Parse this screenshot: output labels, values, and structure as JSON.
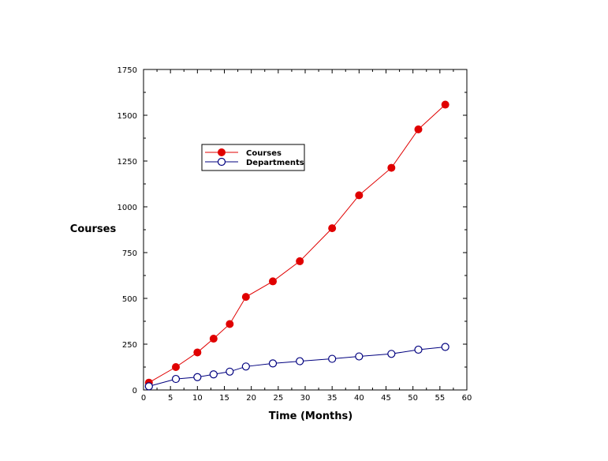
{
  "chart_data": {
    "type": "line",
    "title": "",
    "xlabel": "Time (Months)",
    "ylabel": "Courses",
    "xlim": [
      0,
      60
    ],
    "ylim": [
      0,
      1750
    ],
    "xticks": [
      0,
      5,
      10,
      15,
      20,
      25,
      30,
      35,
      40,
      45,
      50,
      55,
      60
    ],
    "yticks": [
      0,
      250,
      500,
      750,
      1000,
      1250,
      1500,
      1750
    ],
    "grid": false,
    "legend_position": "upper-left",
    "series": [
      {
        "name": "Courses",
        "color": "#e00000",
        "marker": "filled-circle",
        "x": [
          1,
          6,
          10,
          13,
          16,
          19,
          24,
          29,
          35,
          40,
          46,
          51,
          56
        ],
        "y": [
          40,
          125,
          205,
          280,
          360,
          508,
          593,
          703,
          883,
          1063,
          1213,
          1423,
          1558
        ]
      },
      {
        "name": "Departments",
        "color": "#00007f",
        "marker": "open-circle",
        "x": [
          1,
          6,
          10,
          13,
          16,
          19,
          24,
          29,
          35,
          40,
          46,
          51,
          56
        ],
        "y": [
          20,
          60,
          70,
          85,
          100,
          128,
          145,
          157,
          170,
          183,
          197,
          220,
          235
        ]
      }
    ]
  }
}
